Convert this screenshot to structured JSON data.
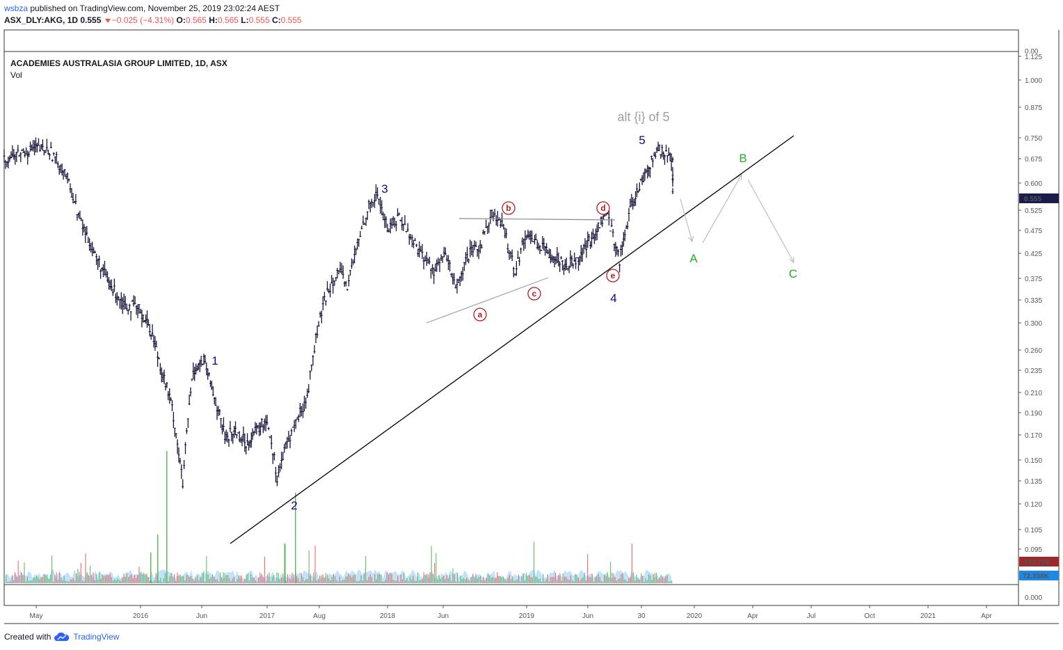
{
  "header": {
    "user": "wsbza",
    "published": " published on TradingView.com, November 25, 2019 23:02:24 AEST",
    "symbol": "ASX_DLY:AKG, 1D",
    "last": "0.555",
    "change": "−0.025 (−4.31%)",
    "o_label": "O:",
    "o": "0.565",
    "h_label": "H:",
    "h": "0.565",
    "l_label": "L:",
    "l": "0.555",
    "c_label": "C:",
    "c": "0.555"
  },
  "legend": {
    "title": "ACADEMIES AUSTRALASIA GROUP LIMITED, 1D, ASX",
    "vol": "Vol"
  },
  "footer": {
    "created": "Created with",
    "brand": "TradingView"
  },
  "colors": {
    "bars": "#131339",
    "trendline": "#000000",
    "wave_blue": "#0b0b8f",
    "wave_red": "#b71c1c",
    "wave_green": "#1fae1f",
    "alt_grey": "#9e9e9e",
    "last_price_bg": "#1c1c4c",
    "vol_up": "#4caf50",
    "vol_down": "#ef5350",
    "vol_ma": "#90caf9"
  },
  "chart_data": {
    "type": "line",
    "price_axis_ticks": [
      "1.125",
      "1.000",
      "0.875",
      "0.750",
      "0.675",
      "0.600",
      "0.525",
      "0.475",
      "0.425",
      "0.375",
      "0.335",
      "0.300",
      "0.260",
      "0.235",
      "0.210",
      "0.190",
      "0.170",
      "0.150",
      "0.135",
      "0.120",
      "0.105",
      "0.095"
    ],
    "vol_axis_ticks": [
      "0.00",
      "0.000"
    ],
    "x_ticks": [
      "May",
      "2016",
      "Jun",
      "2017",
      "Aug",
      "2018",
      "Jun",
      "2019",
      "Jun",
      "30",
      "2020",
      "Apr",
      "Jul",
      "Oct",
      "2021",
      "Apr"
    ],
    "last_price_label": "0.555",
    "volume_labels": [
      "197.72K",
      "72.338K"
    ],
    "annotations": {
      "alt": "alt {i} of 5",
      "waves": [
        "1",
        "2",
        "3",
        "4",
        "5"
      ],
      "sub_waves": [
        "a",
        "b",
        "c",
        "d",
        "e"
      ],
      "abc": [
        "A",
        "B",
        "C"
      ]
    },
    "price_series": [
      [
        "2015-04",
        0.66
      ],
      [
        "2015-05",
        0.68
      ],
      [
        "2015-06",
        0.7
      ],
      [
        "2015-07",
        0.69
      ],
      [
        "2015-08",
        0.62
      ],
      [
        "2015-09",
        0.48
      ],
      [
        "2015-10",
        0.4
      ],
      [
        "2015-11",
        0.34
      ],
      [
        "2015-12",
        0.31
      ],
      [
        "2016-01",
        0.3
      ],
      [
        "2016-02",
        0.27
      ],
      [
        "2016-03",
        0.22
      ],
      [
        "2016-04",
        0.18
      ],
      [
        "2016-05",
        0.12
      ],
      [
        "2016-06",
        0.22
      ],
      [
        "2016-07",
        0.23
      ],
      [
        "2016-08",
        0.19
      ],
      [
        "2016-09",
        0.155
      ],
      [
        "2016-10",
        0.16
      ],
      [
        "2016-11",
        0.15
      ],
      [
        "2016-12",
        0.16
      ],
      [
        "2017-01",
        0.17
      ],
      [
        "2017-02",
        0.125
      ],
      [
        "2017-03",
        0.15
      ],
      [
        "2017-04",
        0.17
      ],
      [
        "2017-05",
        0.19
      ],
      [
        "2017-06",
        0.27
      ],
      [
        "2017-07",
        0.33
      ],
      [
        "2017-08",
        0.37
      ],
      [
        "2017-09",
        0.34
      ],
      [
        "2017-10",
        0.42
      ],
      [
        "2017-11",
        0.51
      ],
      [
        "2017-12",
        0.55
      ],
      [
        "2018-01",
        0.46
      ],
      [
        "2018-02",
        0.49
      ],
      [
        "2018-03",
        0.44
      ],
      [
        "2018-04",
        0.4
      ],
      [
        "2018-05",
        0.37
      ],
      [
        "2018-06",
        0.4
      ],
      [
        "2018-07",
        0.335
      ],
      [
        "2018-08",
        0.4
      ],
      [
        "2018-09",
        0.42
      ],
      [
        "2018-10",
        0.5
      ],
      [
        "2018-11",
        0.46
      ],
      [
        "2018-12",
        0.37
      ],
      [
        "2019-01",
        0.45
      ],
      [
        "2019-02",
        0.42
      ],
      [
        "2019-03",
        0.4
      ],
      [
        "2019-04",
        0.38
      ],
      [
        "2019-05",
        0.4
      ],
      [
        "2019-06",
        0.44
      ],
      [
        "2019-07",
        0.5
      ],
      [
        "2019-08",
        0.39
      ],
      [
        "2019-09",
        0.53
      ],
      [
        "2019-10",
        0.62
      ],
      [
        "2019-11",
        0.7
      ],
      [
        "2019-12",
        0.66
      ],
      [
        "2020-01",
        0.555
      ]
    ]
  }
}
